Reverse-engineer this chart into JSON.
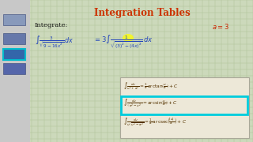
{
  "title": "Integration Tables",
  "title_color": "#cc3300",
  "bg_color": "#ccd9bb",
  "grid_color": "#b0c49a",
  "highlight_yellow": "#ffff00",
  "highlight_cyan": "#00ccdd",
  "box_bg": "#ede8d8",
  "box_edge": "#aaa899",
  "ink_blue": "#2244bb",
  "ink_dark": "#334488",
  "formula_color": "#553300",
  "red_annotation": "#cc2200",
  "left_panel_bg": "#c8c8c8",
  "thumb_colors": [
    "#6677aa",
    "#5566aa",
    "#4488bb"
  ],
  "thumb_highlight_edge": "#00bbcc"
}
